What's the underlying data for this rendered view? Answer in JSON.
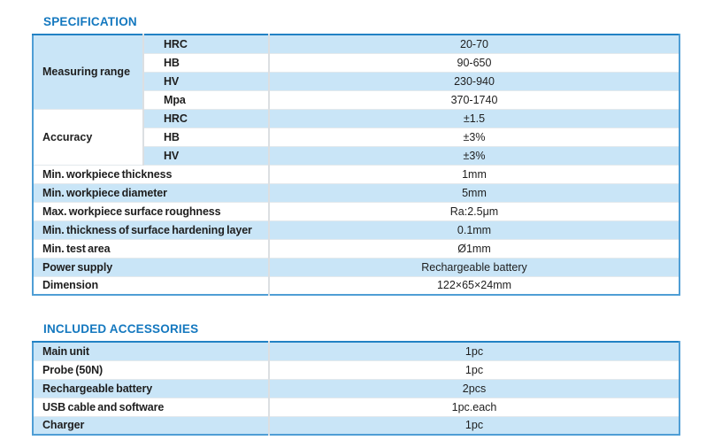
{
  "colors": {
    "title_blue": "#1478bf",
    "row_blue": "#c9e5f7",
    "row_white": "#ffffff",
    "outer_border_blue": "#4f9ed5",
    "outer_border_top_blue": "#2282c4",
    "divider_gray": "#dcdfe2",
    "text_dark": "#1e1e1e"
  },
  "specification": {
    "title": "SPECIFICATION",
    "rows": [
      {
        "group": "Measuring range",
        "group_span": 4,
        "group_bg": "blue",
        "label": "HRC",
        "value": "20-70"
      },
      {
        "label": "HB",
        "value": "90-650"
      },
      {
        "label": "HV",
        "value": "230-940"
      },
      {
        "label": "Mpa",
        "value": "370-1740"
      },
      {
        "group": "Accuracy",
        "group_span": 3,
        "group_bg": "white",
        "label": "HRC",
        "value": "±1.5"
      },
      {
        "label": "HB",
        "value": "±3%"
      },
      {
        "label": "HV",
        "value": "±3%"
      },
      {
        "label": "Min. workpiece thickness",
        "value": "1mm",
        "full": true
      },
      {
        "label": "Min. workpiece diameter",
        "value": "5mm",
        "full": true
      },
      {
        "label": "Max. workpiece surface roughness",
        "value": "Ra:2.5μm",
        "full": true
      },
      {
        "label": "Min. thickness of surface hardening layer",
        "value": "0.1mm",
        "full": true
      },
      {
        "label": "Min. test area",
        "value": "Ø1mm",
        "full": true
      },
      {
        "label": "Power supply",
        "value": "Rechargeable battery",
        "full": true
      },
      {
        "label": "Dimension",
        "value": "122×65×24mm",
        "full": true
      }
    ]
  },
  "accessories": {
    "title": "INCLUDED ACCESSORIES",
    "rows": [
      {
        "label": "Main unit",
        "value": "1pc",
        "full": true
      },
      {
        "label": "Probe (50N)",
        "value": "1pc",
        "full": true
      },
      {
        "label": "Rechargeable battery",
        "value": "2pcs",
        "full": true
      },
      {
        "label": "USB cable and software",
        "value": "1pc.each",
        "full": true
      },
      {
        "label": "Charger",
        "value": "1pc",
        "full": true
      }
    ]
  }
}
